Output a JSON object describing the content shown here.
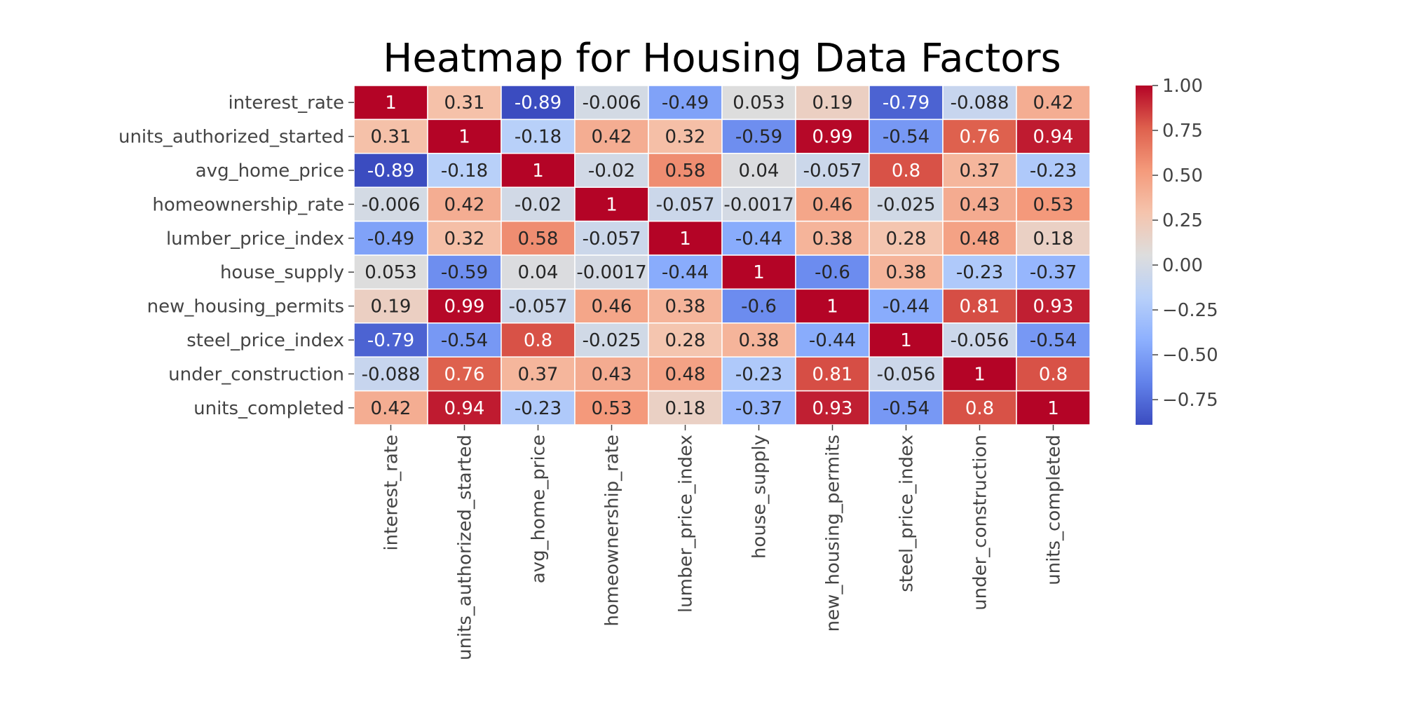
{
  "chart_data": {
    "type": "heatmap",
    "title": "Heatmap for Housing Data Factors",
    "row_labels": [
      "interest_rate",
      "units_authorized_started",
      "avg_home_price",
      "homeownership_rate",
      "lumber_price_index",
      "house_supply",
      "new_housing_permits",
      "steel_price_index",
      "under_construction",
      "units_completed"
    ],
    "col_labels": [
      "interest_rate",
      "units_authorized_started",
      "avg_home_price",
      "homeownership_rate",
      "lumber_price_index",
      "house_supply",
      "new_housing_permits",
      "steel_price_index",
      "under_construction",
      "units_completed"
    ],
    "values": [
      [
        1,
        0.31,
        -0.89,
        -0.006,
        -0.49,
        0.053,
        0.19,
        -0.79,
        -0.088,
        0.42
      ],
      [
        0.31,
        1,
        -0.18,
        0.42,
        0.32,
        -0.59,
        0.99,
        -0.54,
        0.76,
        0.94
      ],
      [
        -0.89,
        -0.18,
        1,
        -0.02,
        0.58,
        0.04,
        -0.057,
        0.8,
        0.37,
        -0.23
      ],
      [
        -0.006,
        0.42,
        -0.02,
        1,
        -0.057,
        -0.0017,
        0.46,
        -0.025,
        0.43,
        0.53
      ],
      [
        -0.49,
        0.32,
        0.58,
        -0.057,
        1,
        -0.44,
        0.38,
        0.28,
        0.48,
        0.18
      ],
      [
        0.053,
        -0.59,
        0.04,
        -0.0017,
        -0.44,
        1,
        -0.6,
        0.38,
        -0.23,
        -0.37
      ],
      [
        0.19,
        0.99,
        -0.057,
        0.46,
        0.38,
        -0.6,
        1,
        -0.44,
        0.81,
        0.93
      ],
      [
        -0.79,
        -0.54,
        0.8,
        -0.025,
        0.28,
        0.38,
        -0.44,
        1,
        -0.056,
        -0.54
      ],
      [
        -0.088,
        0.76,
        0.37,
        0.43,
        0.48,
        -0.23,
        0.81,
        -0.056,
        1,
        0.8
      ],
      [
        0.42,
        0.94,
        -0.23,
        0.53,
        0.18,
        -0.37,
        0.93,
        -0.54,
        0.8,
        1
      ]
    ],
    "cell_labels": [
      [
        "1",
        "0.31",
        "-0.89",
        "-0.006",
        "-0.49",
        "0.053",
        "0.19",
        "-0.79",
        "-0.088",
        "0.42"
      ],
      [
        "0.31",
        "1",
        "-0.18",
        "0.42",
        "0.32",
        "-0.59",
        "0.99",
        "-0.54",
        "0.76",
        "0.94"
      ],
      [
        "-0.89",
        "-0.18",
        "1",
        "-0.02",
        "0.58",
        "0.04",
        "-0.057",
        "0.8",
        "0.37",
        "-0.23"
      ],
      [
        "-0.006",
        "0.42",
        "-0.02",
        "1",
        "-0.057",
        "-0.0017",
        "0.46",
        "-0.025",
        "0.43",
        "0.53"
      ],
      [
        "-0.49",
        "0.32",
        "0.58",
        "-0.057",
        "1",
        "-0.44",
        "0.38",
        "0.28",
        "0.48",
        "0.18"
      ],
      [
        "0.053",
        "-0.59",
        "0.04",
        "-0.0017",
        "-0.44",
        "1",
        "-0.6",
        "0.38",
        "-0.23",
        "-0.37"
      ],
      [
        "0.19",
        "0.99",
        "-0.057",
        "0.46",
        "0.38",
        "-0.6",
        "1",
        "-0.44",
        "0.81",
        "0.93"
      ],
      [
        "-0.79",
        "-0.54",
        "0.8",
        "-0.025",
        "0.28",
        "0.38",
        "-0.44",
        "1",
        "-0.056",
        "-0.54"
      ],
      [
        "-0.088",
        "0.76",
        "0.37",
        "0.43",
        "0.48",
        "-0.23",
        "0.81",
        "-0.056",
        "1",
        "0.8"
      ],
      [
        "0.42",
        "0.94",
        "-0.23",
        "0.53",
        "0.18",
        "-0.37",
        "0.93",
        "-0.54",
        "0.8",
        "1"
      ]
    ],
    "colormap": "coolwarm",
    "colorbar": {
      "vmin": -0.89,
      "vmax": 1.0,
      "ticks": [
        1.0,
        0.75,
        0.5,
        0.25,
        0.0,
        -0.25,
        -0.5,
        -0.75
      ],
      "tick_labels": [
        "1.00",
        "0.75",
        "0.50",
        "0.25",
        "0.00",
        "−0.25",
        "−0.50",
        "−0.75"
      ]
    },
    "colors": {
      "cold": "#3b4cc0",
      "neutral": "#dddddd",
      "hot": "#b40426",
      "grid_line": "#ffffff"
    }
  }
}
